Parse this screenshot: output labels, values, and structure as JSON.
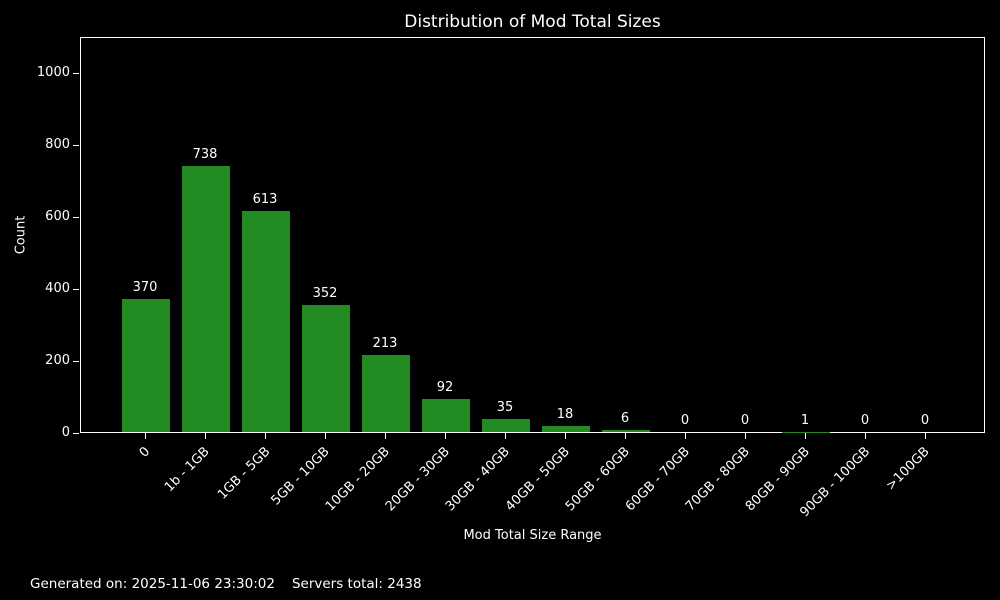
{
  "figure": {
    "footer_generated": "Generated on: 2025-11-06 23:30:02",
    "footer_servers": "Servers total: 2438"
  },
  "colors": {
    "background": "#000000",
    "bar": "#228B22",
    "text": "#ffffff",
    "axis": "#ffffff"
  },
  "chart_data": {
    "type": "bar",
    "title": "Distribution of Mod Total Sizes",
    "xlabel": "Mod Total Size Range",
    "ylabel": "Count",
    "categories": [
      "0",
      "1b - 1GB",
      "1GB - 5GB",
      "5GB - 10GB",
      "10GB - 20GB",
      "20GB - 30GB",
      "30GB - 40GB",
      "40GB - 50GB",
      "50GB - 60GB",
      "60GB - 70GB",
      "70GB - 80GB",
      "80GB - 90GB",
      "90GB - 100GB",
      ">100GB"
    ],
    "values": [
      370,
      738,
      613,
      352,
      213,
      92,
      35,
      18,
      6,
      0,
      0,
      1,
      0,
      0
    ],
    "yticks": [
      0,
      200,
      400,
      600,
      800,
      1000
    ],
    "ylim": [
      0,
      1100
    ],
    "grid": false,
    "legend": "none",
    "bar_value_labels": true,
    "x_tick_rotation": 45,
    "annotations": [
      "Generated on: 2025-11-06 23:30:02    Servers total: 2438"
    ]
  }
}
